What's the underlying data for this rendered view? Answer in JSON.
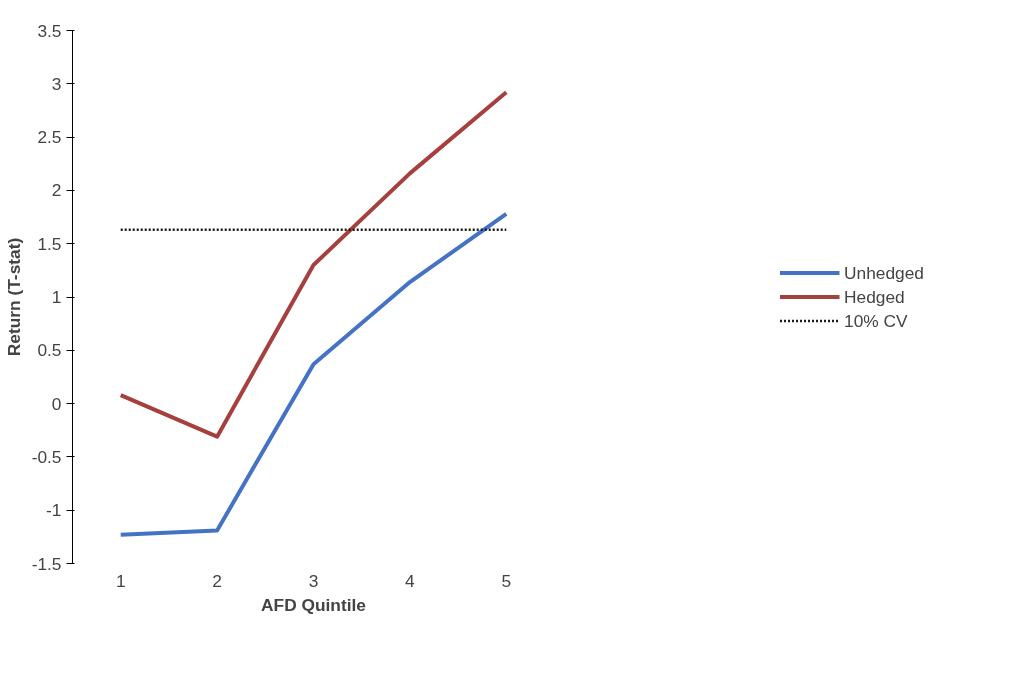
{
  "chart_data": {
    "type": "line",
    "xlabel": "AFD Quintile",
    "ylabel": "Return (T-stat)",
    "categories": [
      "1",
      "2",
      "3",
      "4",
      "5"
    ],
    "series": [
      {
        "name": "Unhedged",
        "color": "#4472c4",
        "values": [
          -1.23,
          -1.19,
          0.37,
          1.14,
          1.78
        ]
      },
      {
        "name": "Hedged",
        "color": "#a5403d",
        "values": [
          0.08,
          -0.31,
          1.3,
          2.16,
          2.92
        ]
      },
      {
        "name": "10% CV",
        "color": "#1a1a1a",
        "values": [
          1.63,
          1.63,
          1.63,
          1.63,
          1.63
        ],
        "line_style": "dotted"
      }
    ],
    "ylim": [
      -1.5,
      3.5
    ],
    "yticks": [
      -1.5,
      -1,
      -0.5,
      0,
      0.5,
      1,
      1.5,
      2,
      2.5,
      3,
      3.5
    ],
    "grid": false,
    "legend": "right",
    "marker": "none",
    "line_style": "solid"
  }
}
